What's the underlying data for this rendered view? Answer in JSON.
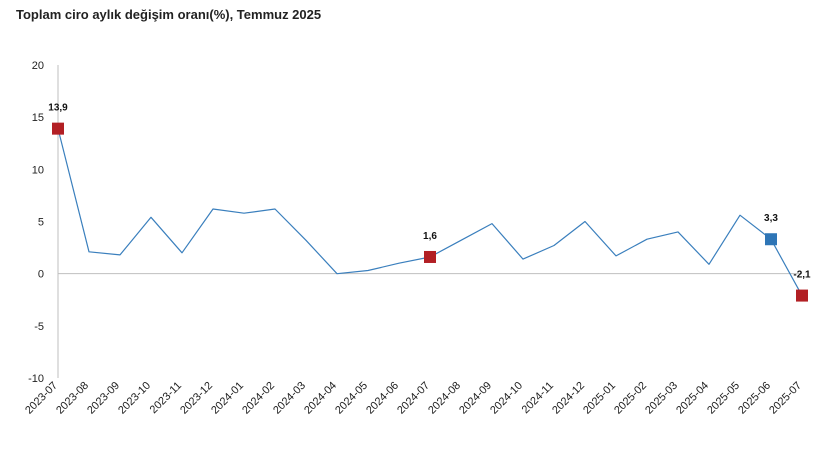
{
  "chart_data": {
    "type": "line",
    "title": "Toplam ciro aylık değişim oranı(%), Temmuz 2025",
    "xlabel": "",
    "ylabel": "",
    "ylim": [
      -10,
      20
    ],
    "yticks": [
      20,
      15,
      10,
      5,
      0,
      -5,
      -10
    ],
    "grid": false,
    "legend": "none",
    "categories": [
      "2023-07",
      "2023-08",
      "2023-09",
      "2023-10",
      "2023-11",
      "2023-12",
      "2024-01",
      "2024-02",
      "2024-03",
      "2024-04",
      "2024-05",
      "2024-06",
      "2024-07",
      "2024-08",
      "2024-09",
      "2024-10",
      "2024-11",
      "2024-12",
      "2025-01",
      "2025-02",
      "2025-03",
      "2025-04",
      "2025-05",
      "2025-06",
      "2025-07"
    ],
    "series": [
      {
        "values": [
          13.9,
          2.1,
          1.8,
          5.4,
          2.0,
          6.2,
          5.8,
          6.2,
          3.2,
          0.0,
          0.3,
          1.0,
          1.6,
          3.2,
          4.8,
          1.4,
          2.7,
          5.0,
          1.7,
          3.3,
          4.0,
          0.9,
          5.6,
          3.3,
          -2.1
        ],
        "color": "#3a7fbd"
      }
    ],
    "highlighted_points": [
      {
        "category": "2023-07",
        "value": 13.9,
        "label": "13,9",
        "color": "#b21f24"
      },
      {
        "category": "2024-07",
        "value": 1.6,
        "label": "1,6",
        "color": "#b21f24"
      },
      {
        "category": "2025-06",
        "value": 3.3,
        "label": "3,3",
        "color": "#2e75b6"
      },
      {
        "category": "2025-07",
        "value": -2.1,
        "label": "-2,1",
        "color": "#b21f24"
      }
    ]
  }
}
